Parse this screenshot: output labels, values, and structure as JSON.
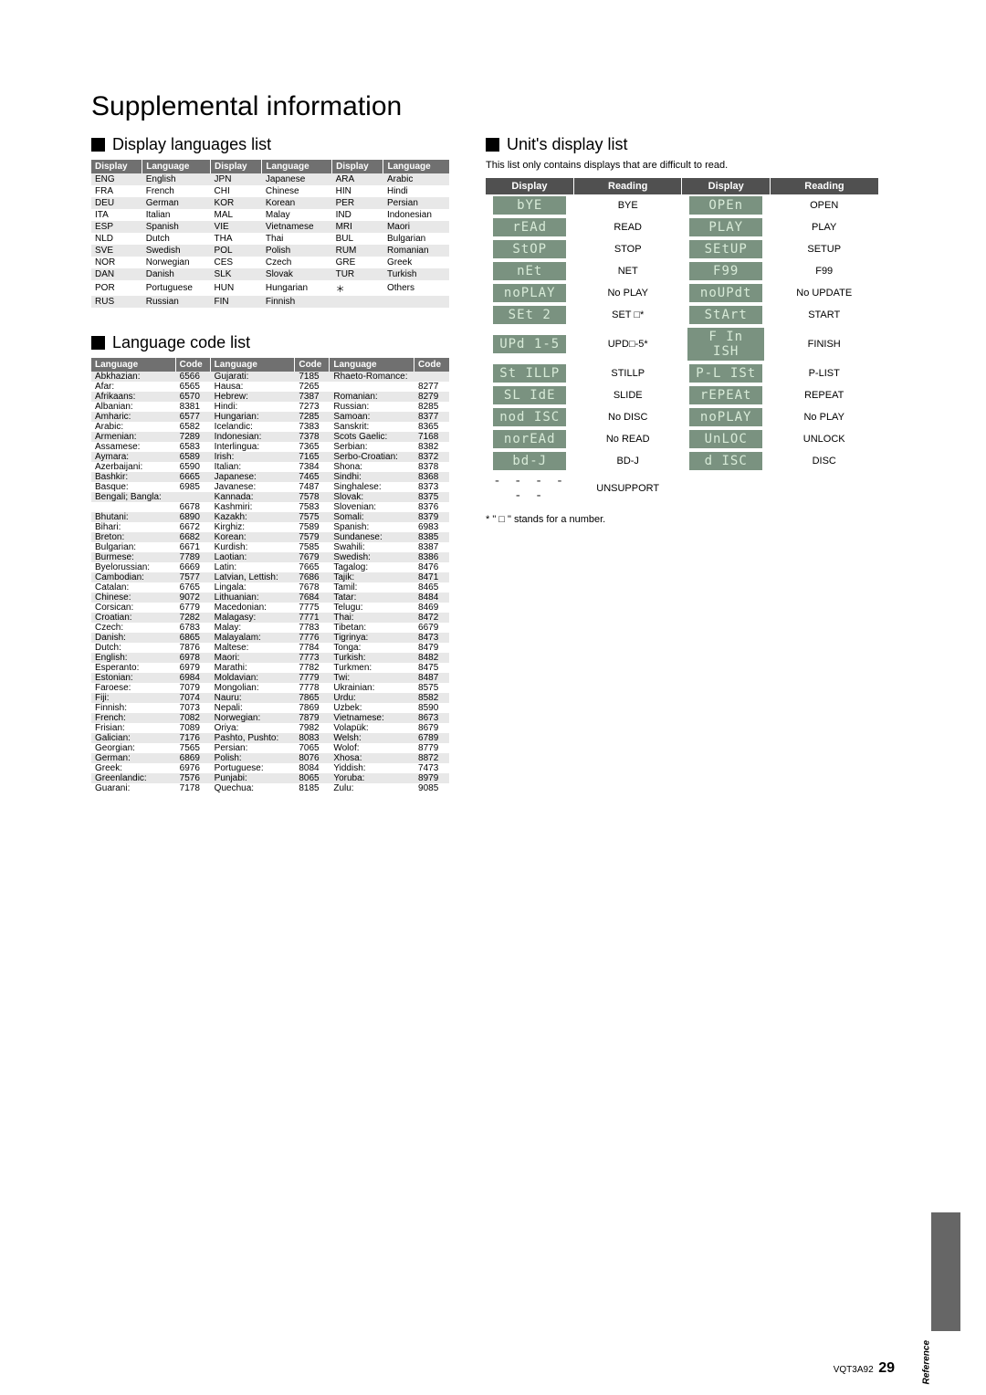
{
  "title": "Supplemental information",
  "sections": {
    "displayLanguages": "Display languages list",
    "languageCodes": "Language code list",
    "unitDisplay": "Unit's display list"
  },
  "displayLanguagesHeaders": [
    "Display",
    "Language",
    "Display",
    "Language",
    "Display",
    "Language"
  ],
  "displayLanguagesRows": [
    [
      "ENG",
      "English",
      "JPN",
      "Japanese",
      "ARA",
      "Arabic"
    ],
    [
      "FRA",
      "French",
      "CHI",
      "Chinese",
      "HIN",
      "Hindi"
    ],
    [
      "DEU",
      "German",
      "KOR",
      "Korean",
      "PER",
      "Persian"
    ],
    [
      "ITA",
      "Italian",
      "MAL",
      "Malay",
      "IND",
      "Indonesian"
    ],
    [
      "ESP",
      "Spanish",
      "VIE",
      "Vietnamese",
      "MRI",
      "Maori"
    ],
    [
      "NLD",
      "Dutch",
      "THA",
      "Thai",
      "BUL",
      "Bulgarian"
    ],
    [
      "SVE",
      "Swedish",
      "POL",
      "Polish",
      "RUM",
      "Romanian"
    ],
    [
      "NOR",
      "Norwegian",
      "CES",
      "Czech",
      "GRE",
      "Greek"
    ],
    [
      "DAN",
      "Danish",
      "SLK",
      "Slovak",
      "TUR",
      "Turkish"
    ],
    [
      "POR",
      "Portuguese",
      "HUN",
      "Hungarian",
      "＊",
      "Others"
    ],
    [
      "RUS",
      "Russian",
      "FIN",
      "Finnish",
      "",
      ""
    ]
  ],
  "langCodeHeaders": [
    "Language",
    "Code",
    "Language",
    "Code",
    "Language",
    "Code"
  ],
  "langCodes": {
    "col1": [
      [
        "Abkhazian:",
        "6566"
      ],
      [
        "Afar:",
        "6565"
      ],
      [
        "Afrikaans:",
        "6570"
      ],
      [
        "Albanian:",
        "8381"
      ],
      [
        "Amharic:",
        "6577"
      ],
      [
        "Arabic:",
        "6582"
      ],
      [
        "Armenian:",
        "7289"
      ],
      [
        "Assamese:",
        "6583"
      ],
      [
        "Aymara:",
        "6589"
      ],
      [
        "Azerbaijani:",
        "6590"
      ],
      [
        "Bashkir:",
        "6665"
      ],
      [
        "Basque:",
        "6985"
      ],
      [
        "Bengali; Bangla:",
        ""
      ],
      [
        "",
        "6678"
      ],
      [
        "Bhutani:",
        "6890"
      ],
      [
        "Bihari:",
        "6672"
      ],
      [
        "Breton:",
        "6682"
      ],
      [
        "Bulgarian:",
        "6671"
      ],
      [
        "Burmese:",
        "7789"
      ],
      [
        "Byelorussian:",
        "6669"
      ],
      [
        "Cambodian:",
        "7577"
      ],
      [
        "Catalan:",
        "6765"
      ],
      [
        "Chinese:",
        "9072"
      ],
      [
        "Corsican:",
        "6779"
      ],
      [
        "Croatian:",
        "7282"
      ],
      [
        "Czech:",
        "6783"
      ],
      [
        "Danish:",
        "6865"
      ],
      [
        "Dutch:",
        "7876"
      ],
      [
        "English:",
        "6978"
      ],
      [
        "Esperanto:",
        "6979"
      ],
      [
        "Estonian:",
        "6984"
      ],
      [
        "Faroese:",
        "7079"
      ],
      [
        "Fiji:",
        "7074"
      ],
      [
        "Finnish:",
        "7073"
      ],
      [
        "French:",
        "7082"
      ],
      [
        "Frisian:",
        "7089"
      ],
      [
        "Galician:",
        "7176"
      ],
      [
        "Georgian:",
        "7565"
      ],
      [
        "German:",
        "6869"
      ],
      [
        "Greek:",
        "6976"
      ],
      [
        "Greenlandic:",
        "7576"
      ],
      [
        "Guarani:",
        "7178"
      ]
    ],
    "col2": [
      [
        "Gujarati:",
        "7185"
      ],
      [
        "Hausa:",
        "7265"
      ],
      [
        "Hebrew:",
        "7387"
      ],
      [
        "Hindi:",
        "7273"
      ],
      [
        "Hungarian:",
        "7285"
      ],
      [
        "Icelandic:",
        "7383"
      ],
      [
        "Indonesian:",
        "7378"
      ],
      [
        "Interlingua:",
        "7365"
      ],
      [
        "Irish:",
        "7165"
      ],
      [
        "Italian:",
        "7384"
      ],
      [
        "Japanese:",
        "7465"
      ],
      [
        "Javanese:",
        "7487"
      ],
      [
        "Kannada:",
        "7578"
      ],
      [
        "Kashmiri:",
        "7583"
      ],
      [
        "Kazakh:",
        "7575"
      ],
      [
        "Kirghiz:",
        "7589"
      ],
      [
        "Korean:",
        "7579"
      ],
      [
        "Kurdish:",
        "7585"
      ],
      [
        "Laotian:",
        "7679"
      ],
      [
        "Latin:",
        "7665"
      ],
      [
        "Latvian, Lettish:",
        "7686"
      ],
      [
        "Lingala:",
        "7678"
      ],
      [
        "Lithuanian:",
        "7684"
      ],
      [
        "Macedonian:",
        "7775"
      ],
      [
        "Malagasy:",
        "7771"
      ],
      [
        "Malay:",
        "7783"
      ],
      [
        "Malayalam:",
        "7776"
      ],
      [
        "Maltese:",
        "7784"
      ],
      [
        "Maori:",
        "7773"
      ],
      [
        "Marathi:",
        "7782"
      ],
      [
        "Moldavian:",
        "7779"
      ],
      [
        "Mongolian:",
        "7778"
      ],
      [
        "Nauru:",
        "7865"
      ],
      [
        "Nepali:",
        "7869"
      ],
      [
        "Norwegian:",
        "7879"
      ],
      [
        "Oriya:",
        "7982"
      ],
      [
        "Pashto, Pushto:",
        "8083"
      ],
      [
        "Persian:",
        "7065"
      ],
      [
        "Polish:",
        "8076"
      ],
      [
        "Portuguese:",
        "8084"
      ],
      [
        "Punjabi:",
        "8065"
      ],
      [
        "Quechua:",
        "8185"
      ]
    ],
    "col3": [
      [
        "Rhaeto-Romance:",
        ""
      ],
      [
        "",
        "8277"
      ],
      [
        "Romanian:",
        "8279"
      ],
      [
        "Russian:",
        "8285"
      ],
      [
        "Samoan:",
        "8377"
      ],
      [
        "Sanskrit:",
        "8365"
      ],
      [
        "Scots Gaelic:",
        "7168"
      ],
      [
        "Serbian:",
        "8382"
      ],
      [
        "Serbo-Croatian:",
        "8372"
      ],
      [
        "Shona:",
        "8378"
      ],
      [
        "Sindhi:",
        "8368"
      ],
      [
        "Singhalese:",
        "8373"
      ],
      [
        "Slovak:",
        "8375"
      ],
      [
        "Slovenian:",
        "8376"
      ],
      [
        "Somali:",
        "8379"
      ],
      [
        "Spanish:",
        "6983"
      ],
      [
        "Sundanese:",
        "8385"
      ],
      [
        "Swahili:",
        "8387"
      ],
      [
        "Swedish:",
        "8386"
      ],
      [
        "Tagalog:",
        "8476"
      ],
      [
        "Tajik:",
        "8471"
      ],
      [
        "Tamil:",
        "8465"
      ],
      [
        "Tatar:",
        "8484"
      ],
      [
        "Telugu:",
        "8469"
      ],
      [
        "Thai:",
        "8472"
      ],
      [
        "Tibetan:",
        "6679"
      ],
      [
        "Tigrinya:",
        "8473"
      ],
      [
        "Tonga:",
        "8479"
      ],
      [
        "Turkish:",
        "8482"
      ],
      [
        "Turkmen:",
        "8475"
      ],
      [
        "Twi:",
        "8487"
      ],
      [
        "Ukrainian:",
        "8575"
      ],
      [
        "Urdu:",
        "8582"
      ],
      [
        "Uzbek:",
        "8590"
      ],
      [
        "Vietnamese:",
        "8673"
      ],
      [
        "Volapük:",
        "8679"
      ],
      [
        "Welsh:",
        "6789"
      ],
      [
        "Wolof:",
        "8779"
      ],
      [
        "Xhosa:",
        "8872"
      ],
      [
        "Yiddish:",
        "7473"
      ],
      [
        "Yoruba:",
        "8979"
      ],
      [
        "Zulu:",
        "9085"
      ]
    ]
  },
  "unitDisplayNote": "This list only contains displays that are difficult to read.",
  "unitDisplayHeaders": [
    "Display",
    "Reading",
    "Display",
    "Reading"
  ],
  "unitDisplayRows": [
    {
      "d1": "bYE",
      "r1": "BYE",
      "d2": "OPEn",
      "r2": "OPEN"
    },
    {
      "d1": "rEAd",
      "r1": "READ",
      "d2": "PLAY",
      "r2": "PLAY"
    },
    {
      "d1": "StOP",
      "r1": "STOP",
      "d2": "SEtUP",
      "r2": "SETUP"
    },
    {
      "d1": "nEt",
      "r1": "NET",
      "d2": "F99",
      "r2": "F99"
    },
    {
      "d1": "noPLAY",
      "r1": "No PLAY",
      "d2": "noUPdt",
      "r2": "No UPDATE"
    },
    {
      "d1": "SEt 2",
      "r1": "SET □*",
      "d2": "StArt",
      "r2": "START"
    },
    {
      "d1": "UPd 1-5",
      "r1": "UPD□-5*",
      "d2": "F In ISH",
      "r2": "FINISH"
    },
    {
      "d1": "St ILLP",
      "r1": "STILLP",
      "d2": "P-L ISt",
      "r2": "P-LIST"
    },
    {
      "d1": "SL IdE",
      "r1": "SLIDE",
      "d2": "rEPEAt",
      "r2": "REPEAT"
    },
    {
      "d1": "nod ISC",
      "r1": "No DISC",
      "d2": "noPLAY",
      "r2": "No PLAY"
    },
    {
      "d1": "norEAd",
      "r1": "No READ",
      "d2": "UnLOC",
      "r2": "UNLOCK"
    },
    {
      "d1": "bd-J",
      "r1": "BD-J",
      "d2": "d ISC",
      "r2": "DISC"
    }
  ],
  "unitDisplayLastRow": {
    "d1": "- - - - - -",
    "r1": "UNSUPPORT"
  },
  "footnote": "* \" □ \" stands for a number.",
  "sideLabel": "Reference",
  "footerCode": "VQT3A92",
  "pageNumber": "29"
}
